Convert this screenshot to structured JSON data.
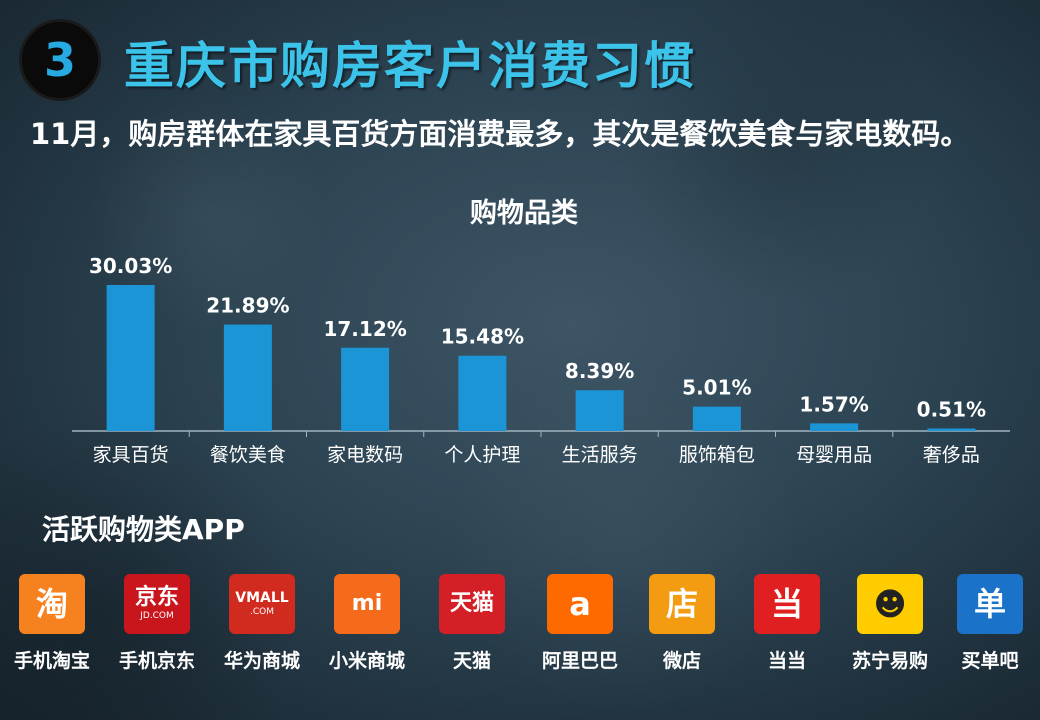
{
  "header": {
    "number": "3",
    "title": "重庆市购房客户消费习惯",
    "subtitle": "11月，购房群体在家具百货方面消费最多，其次是餐饮美食与家电数码。"
  },
  "chart_data": {
    "type": "bar",
    "title": "购物品类",
    "categories": [
      "家具百货",
      "餐饮美食",
      "家电数码",
      "个人护理",
      "生活服务",
      "服饰箱包",
      "母婴用品",
      "奢侈品"
    ],
    "values": [
      30.03,
      21.89,
      17.12,
      15.48,
      8.39,
      5.01,
      1.57,
      0.51
    ],
    "data_labels": [
      "30.03%",
      "21.89%",
      "17.12%",
      "15.48%",
      "8.39%",
      "5.01%",
      "1.57%",
      "0.51%"
    ],
    "ylim": [
      0,
      30.03
    ],
    "grid": false,
    "bar_color": "#1b95d6"
  },
  "apps_section": {
    "title": "活跃购物类APP",
    "apps": [
      {
        "label": "手机淘宝",
        "icon": "taobao-icon",
        "glyph": "淘",
        "bg": "#f5821f",
        "fg": "#ffffff"
      },
      {
        "label": "手机京东",
        "icon": "jd-icon",
        "glyph": "京东",
        "sub": "JD.COM",
        "bg": "#c9161d",
        "fg": "#ffffff"
      },
      {
        "label": "华为商城",
        "icon": "vmall-icon",
        "glyph": "VMALL",
        "sub": ".COM",
        "bg": "#d12a1f",
        "fg": "#ffffff"
      },
      {
        "label": "小米商城",
        "icon": "mi-icon",
        "glyph": "mi",
        "bg": "#f46c1b",
        "fg": "#ffffff"
      },
      {
        "label": "天猫",
        "icon": "tmall-icon",
        "glyph": "天猫",
        "bg": "#d41f26",
        "fg": "#ffffff"
      },
      {
        "label": "阿里巴巴",
        "icon": "alibaba-icon",
        "glyph": "a",
        "bg": "#ff6a00",
        "fg": "#ffffff"
      },
      {
        "label": "微店",
        "icon": "weidian-icon",
        "glyph": "店",
        "bg": "#f39c12",
        "fg": "#ffffff"
      },
      {
        "label": "当当",
        "icon": "dangdang-icon",
        "glyph": "当",
        "bg": "#e02020",
        "fg": "#ffffff"
      },
      {
        "label": "苏宁易购",
        "icon": "suning-icon",
        "glyph": "☻",
        "bg": "#ffcc00",
        "fg": "#222222"
      },
      {
        "label": "买单吧",
        "icon": "maidanba-icon",
        "glyph": "单",
        "bg": "#1a73c9",
        "fg": "#ffffff"
      }
    ]
  }
}
